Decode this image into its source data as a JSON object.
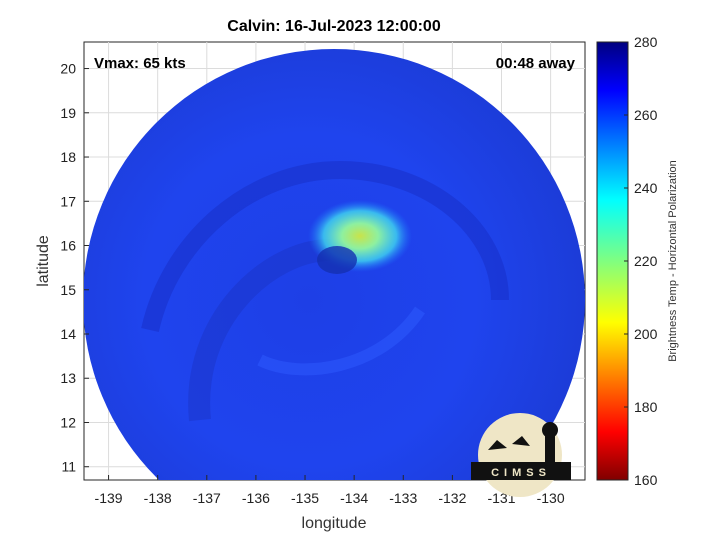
{
  "chart_data": {
    "type": "heatmap",
    "title": "Calvin: 16-Jul-2023 12:00:00",
    "xlabel": "longitude",
    "ylabel": "latitude",
    "xlim": [
      -139.5,
      -129.3
    ],
    "ylim": [
      10.7,
      20.6
    ],
    "x_ticks": [
      -139,
      -138,
      -137,
      -136,
      -135,
      -134,
      -133,
      -132,
      -131,
      -130
    ],
    "y_ticks": [
      11,
      12,
      13,
      14,
      15,
      16,
      17,
      18,
      19,
      20
    ],
    "x_tick_labels": [
      "-139",
      "-138",
      "-137",
      "-136",
      "-135",
      "-134",
      "-133",
      "-132",
      "-131",
      "-130"
    ],
    "y_tick_labels": [
      "11",
      "12",
      "13",
      "14",
      "15",
      "16",
      "17",
      "18",
      "19",
      "20"
    ],
    "grid": true,
    "annotations": {
      "vmax": "Vmax: 65 kts",
      "time_offset": "00:48 away"
    },
    "colorbar": {
      "label": "Brightness Temp - Horizontal Polarization",
      "min": 160,
      "max": 280,
      "ticks": [
        160,
        180,
        200,
        220,
        240,
        260,
        280
      ],
      "tick_labels": [
        "160",
        "180",
        "200",
        "220",
        "240",
        "260",
        "280"
      ],
      "colormap": "jet"
    },
    "features": {
      "swath_center": [
        -134.25,
        15.6
      ],
      "storm_center": [
        -133.9,
        16.2
      ],
      "warm_core_range": [
        200,
        215
      ],
      "background_range": [
        258,
        268
      ]
    },
    "logo_text": "CIMSS"
  }
}
